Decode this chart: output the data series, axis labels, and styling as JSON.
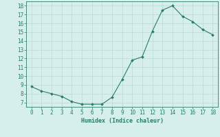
{
  "x": [
    0,
    1,
    2,
    3,
    4,
    5,
    6,
    7,
    8,
    9,
    10,
    11,
    12,
    13,
    14,
    15,
    16,
    17,
    18
  ],
  "y": [
    8.8,
    8.3,
    8.0,
    7.7,
    7.1,
    6.8,
    6.8,
    6.8,
    7.6,
    9.6,
    11.8,
    12.2,
    15.1,
    17.5,
    18.0,
    16.8,
    16.2,
    15.3,
    14.7
  ],
  "xlabel": "Humidex (Indice chaleur)",
  "xlim": [
    -0.5,
    18.5
  ],
  "ylim": [
    6.5,
    18.5
  ],
  "yticks": [
    7,
    8,
    9,
    10,
    11,
    12,
    13,
    14,
    15,
    16,
    17,
    18
  ],
  "xticks": [
    0,
    1,
    2,
    3,
    4,
    5,
    6,
    7,
    8,
    9,
    10,
    11,
    12,
    13,
    14,
    15,
    16,
    17,
    18
  ],
  "line_color": "#2a7a6a",
  "bg_color": "#d6efec",
  "grid_color": "#b8d8d4"
}
